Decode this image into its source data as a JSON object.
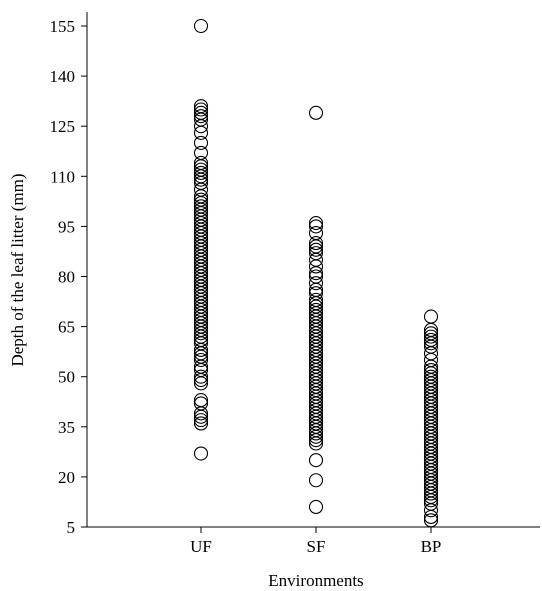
{
  "chart_data": {
    "type": "scatter",
    "title": "",
    "xlabel": "Environments",
    "ylabel": "Depth of the leaf litter (mm)",
    "categories": [
      "UF",
      "SF",
      "BP"
    ],
    "ylim": [
      5,
      155
    ],
    "yticks": [
      5,
      20,
      35,
      50,
      65,
      80,
      95,
      110,
      125,
      140,
      155
    ],
    "grid": false,
    "legend": "none",
    "series": [
      {
        "category": "UF",
        "values": [
          27,
          36,
          37,
          38,
          39,
          42,
          43,
          48,
          49,
          50,
          52,
          53,
          55,
          56,
          57,
          58,
          60,
          61,
          62,
          63,
          64,
          65,
          66,
          67,
          68,
          69,
          70,
          71,
          72,
          73,
          74,
          75,
          76,
          77,
          78,
          79,
          80,
          81,
          82,
          83,
          84,
          85,
          86,
          87,
          88,
          89,
          90,
          91,
          92,
          93,
          94,
          95,
          96,
          97,
          98,
          99,
          100,
          101,
          102,
          103,
          104,
          106,
          108,
          109,
          110,
          111,
          112,
          113,
          114,
          117,
          120,
          123,
          125,
          127,
          128,
          129,
          130,
          131,
          155
        ]
      },
      {
        "category": "SF",
        "values": [
          11,
          19,
          25,
          30,
          31,
          32,
          33,
          34,
          35,
          36,
          37,
          38,
          39,
          40,
          41,
          42,
          43,
          44,
          45,
          46,
          47,
          48,
          49,
          50,
          51,
          52,
          53,
          54,
          55,
          56,
          57,
          58,
          59,
          60,
          61,
          62,
          63,
          64,
          65,
          66,
          67,
          68,
          69,
          70,
          71,
          72,
          73,
          75,
          76,
          78,
          80,
          81,
          83,
          85,
          87,
          88,
          89,
          90,
          93,
          95,
          96,
          129
        ]
      },
      {
        "category": "BP",
        "values": [
          7,
          8,
          10,
          12,
          13,
          14,
          15,
          16,
          17,
          18,
          19,
          20,
          21,
          22,
          23,
          24,
          25,
          26,
          27,
          28,
          29,
          30,
          31,
          32,
          33,
          34,
          35,
          36,
          37,
          38,
          39,
          40,
          41,
          42,
          43,
          44,
          45,
          46,
          47,
          48,
          49,
          50,
          51,
          52,
          53,
          55,
          57,
          59,
          60,
          61,
          62,
          63,
          64,
          68
        ]
      }
    ]
  }
}
